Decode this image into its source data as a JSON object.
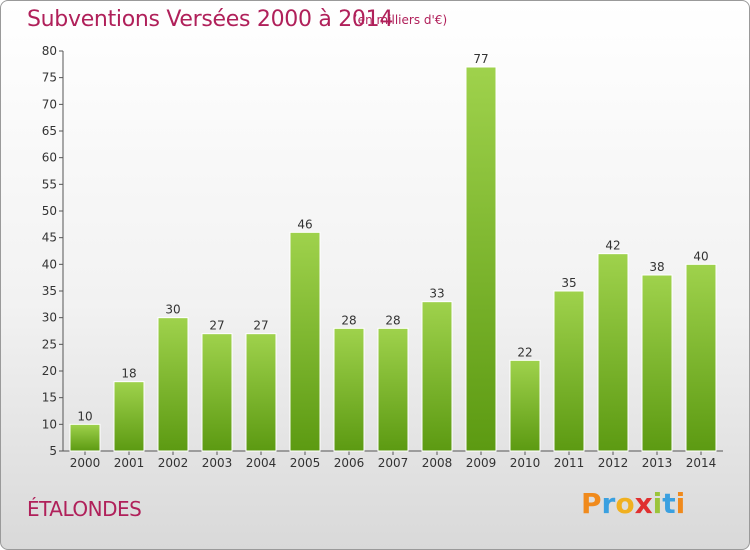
{
  "header": {
    "title": "Subventions Versées 2000 à 2014",
    "subtitle": "(en milliers d'€)"
  },
  "footer": {
    "commune": "ÉTALONDES",
    "logo": "Proxiti"
  },
  "colors": {
    "title": "#b0205a",
    "bar_top": "#9fd24c",
    "bar_bottom": "#5c9a12",
    "logo_letters": [
      "#f08a1c",
      "#3aa0e0",
      "#f0b020",
      "#e03030",
      "#9bc43a",
      "#3aa0e0",
      "#f08a1c"
    ]
  },
  "chart_data": {
    "type": "bar",
    "title": "Subventions Versées 2000 à 2014",
    "subtitle": "(en milliers d'€)",
    "xlabel": "",
    "ylabel": "",
    "categories": [
      "2000",
      "2001",
      "2002",
      "2003",
      "2004",
      "2005",
      "2006",
      "2007",
      "2008",
      "2009",
      "2010",
      "2011",
      "2012",
      "2013",
      "2014"
    ],
    "values": [
      10,
      18,
      30,
      27,
      27,
      46,
      28,
      28,
      33,
      77,
      22,
      35,
      42,
      38,
      40
    ],
    "ylim": [
      5,
      80
    ],
    "yticks": [
      5,
      10,
      15,
      20,
      25,
      30,
      35,
      40,
      45,
      50,
      55,
      60,
      65,
      70,
      75,
      80
    ],
    "grid": false,
    "legend": "none"
  }
}
